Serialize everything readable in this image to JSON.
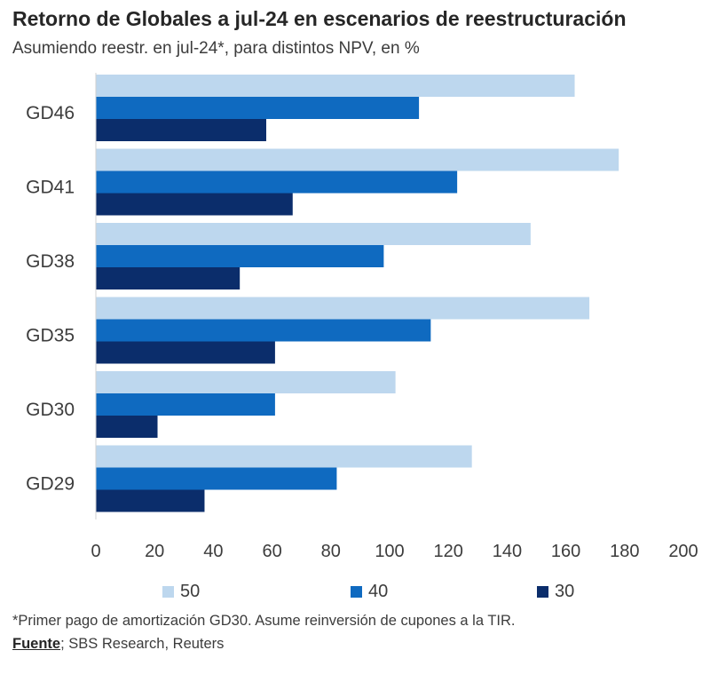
{
  "chart_data": {
    "type": "bar",
    "orientation": "horizontal",
    "title": "Retorno de Globales a jul-24 en escenarios de reestructuración",
    "subtitle": "Asumiendo reestr. en jul-24*, para distintos NPV, en %",
    "categories": [
      "GD46",
      "GD41",
      "GD38",
      "GD35",
      "GD30",
      "GD29"
    ],
    "series": [
      {
        "name": "50",
        "color": "#bdd7ee",
        "values": [
          163,
          178,
          148,
          168,
          102,
          128
        ]
      },
      {
        "name": "40",
        "color": "#0f6ac0",
        "values": [
          110,
          123,
          98,
          114,
          61,
          82
        ]
      },
      {
        "name": "30",
        "color": "#0b2d6b",
        "values": [
          58,
          67,
          49,
          61,
          21,
          37
        ]
      }
    ],
    "xlim": [
      0,
      200
    ],
    "xticks": [
      "0",
      "20",
      "40",
      "60",
      "80",
      "100",
      "120",
      "140",
      "160",
      "180",
      "200"
    ],
    "xlabel": "",
    "ylabel": "",
    "legend_position": "bottom",
    "grid": false
  },
  "footnote": "*Primer pago de amortización GD30. Asume reinversión de cupones a la TIR.",
  "source": {
    "label": "Fuente",
    "text": "; SBS Research, Reuters"
  }
}
